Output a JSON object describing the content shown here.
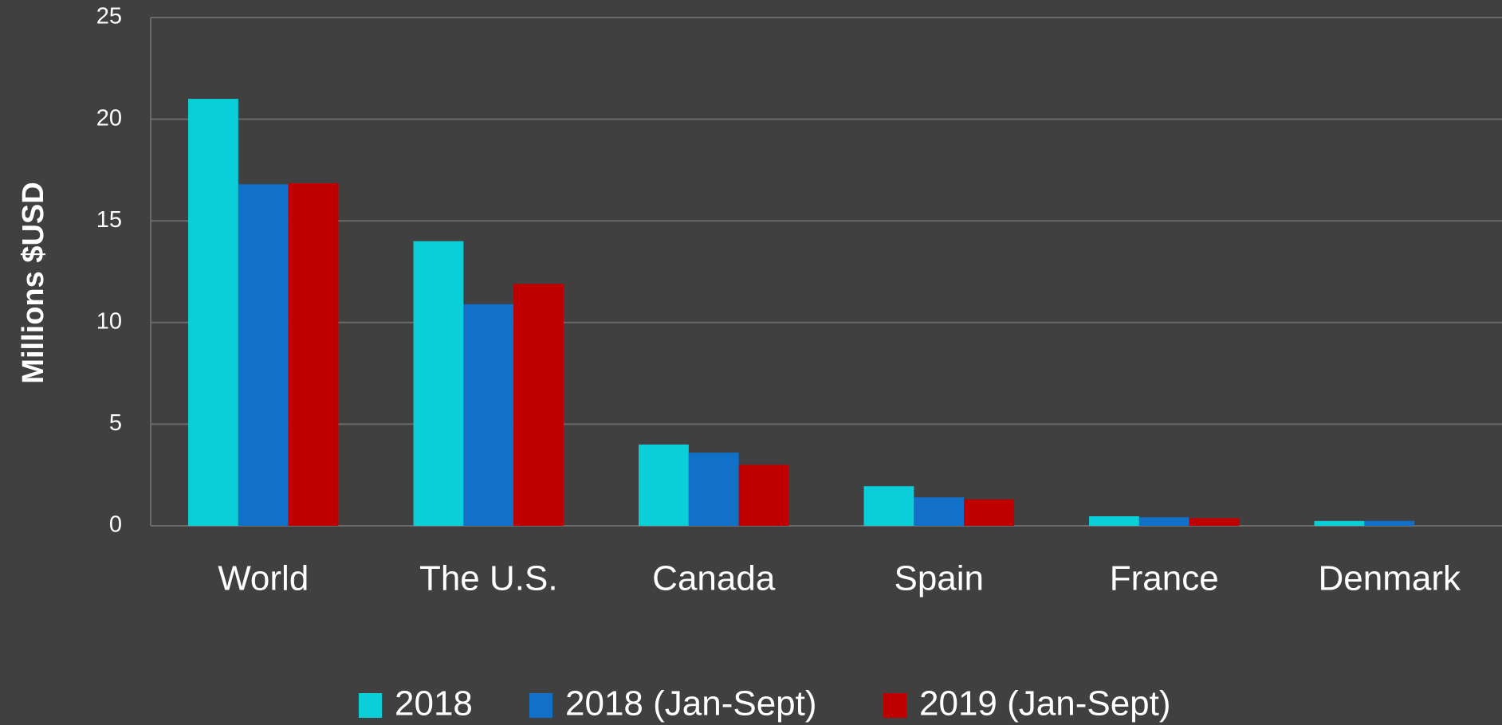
{
  "chart_data": {
    "type": "bar",
    "y_label": "Millions $USD",
    "categories": [
      "World",
      "The U.S.",
      "Canada",
      "Spain",
      "France",
      "Denmark"
    ],
    "series": [
      {
        "name": "2018",
        "color": "#0bcfd8",
        "values": [
          21,
          14,
          4,
          1.95,
          0.47,
          0.24
        ]
      },
      {
        "name": "2018 (Jan-Sept)",
        "color": "#1170c8",
        "values": [
          16.8,
          10.9,
          3.6,
          1.4,
          0.42,
          0.24
        ]
      },
      {
        "name": "2019 (Jan-Sept)",
        "color": "#c00000",
        "values": [
          16.85,
          11.9,
          3,
          1.3,
          0.38,
          0
        ]
      }
    ],
    "ylim": [
      0,
      25
    ],
    "yticks": [
      0,
      5,
      10,
      15,
      20,
      25
    ],
    "grid": true,
    "legend": "bottom"
  }
}
